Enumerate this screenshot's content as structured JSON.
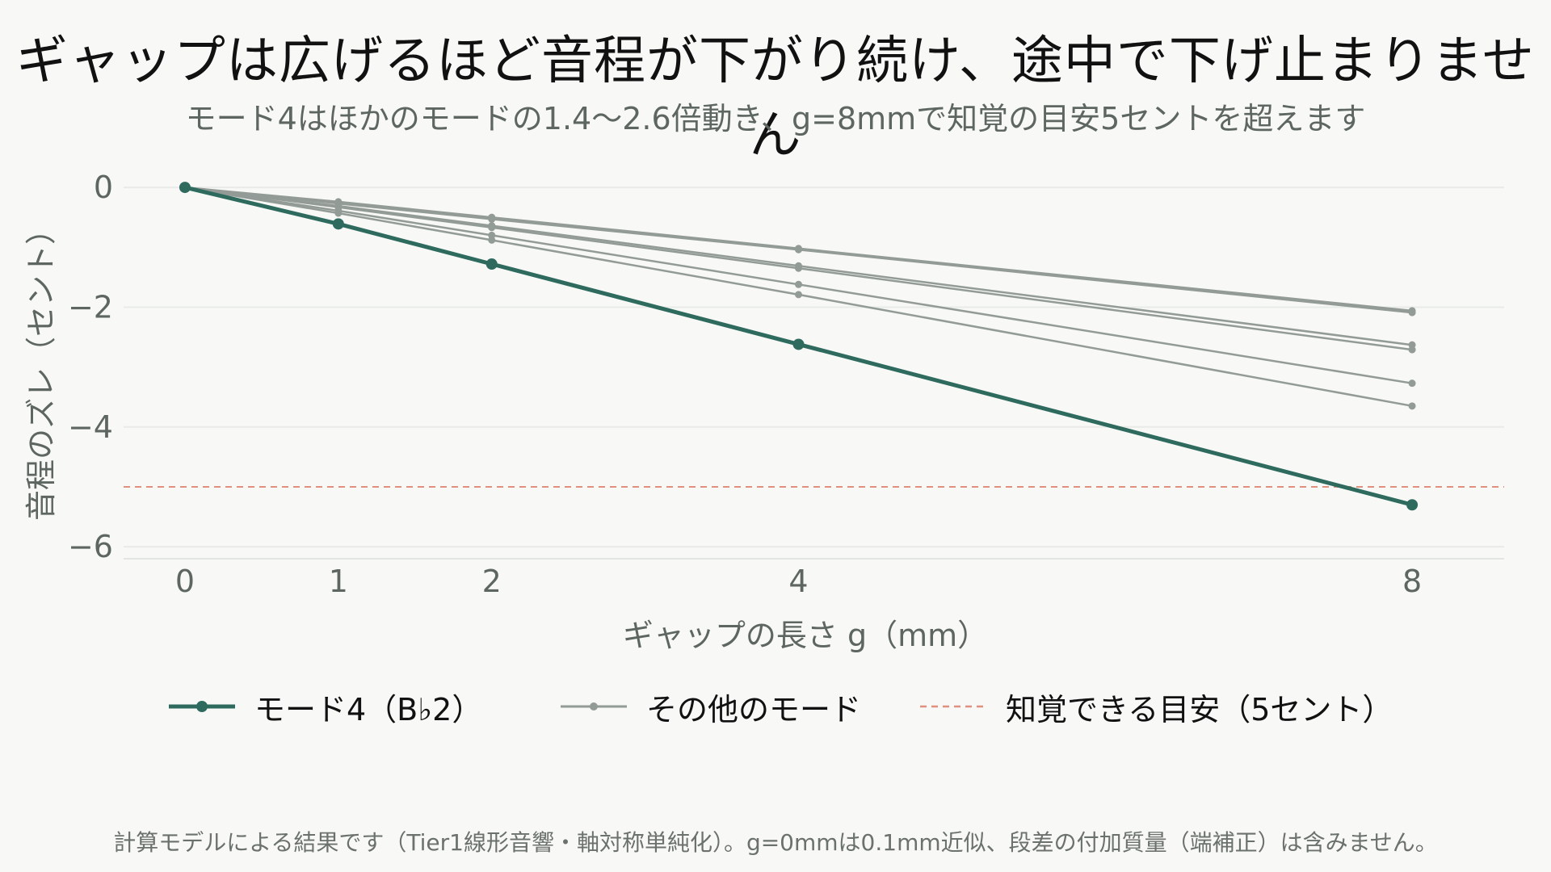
{
  "chart_data": {
    "type": "line",
    "title": "ギャップは広げるほど音程が下がり続け、途中で下げ止まりません",
    "subtitle": "モード4はほかのモードの1.4〜2.6倍動き、g=8mmで知覚の目安5セントを超えます",
    "xlabel": "ギャップの長さ g（mm）",
    "ylabel": "音程のズレ（セント）",
    "x": [
      0,
      1,
      2,
      4,
      8
    ],
    "x_ticks": [
      0,
      1,
      2,
      4,
      8
    ],
    "y_ticks": [
      0,
      -2,
      -4,
      -6
    ],
    "xlim": [
      -0.4,
      8.6
    ],
    "ylim": [
      -6.2,
      0.5
    ],
    "grid": true,
    "legend_position": "bottom",
    "series": [
      {
        "name": "モード4（B♭2）",
        "role": "highlight",
        "color": "#2e6b5e",
        "values": [
          0,
          -0.61,
          -1.28,
          -2.62,
          -5.3
        ]
      },
      {
        "name": "その他のモード",
        "role": "other",
        "color": "#939b97",
        "values": [
          0,
          -0.24,
          -0.5,
          -1.02,
          -2.06
        ]
      },
      {
        "name": "その他のモード",
        "role": "other",
        "color": "#939b97",
        "values": [
          0,
          -0.27,
          -0.53,
          -1.04,
          -2.09
        ]
      },
      {
        "name": "その他のモード",
        "role": "other",
        "color": "#939b97",
        "values": [
          0,
          -0.31,
          -0.64,
          -1.31,
          -2.63
        ]
      },
      {
        "name": "その他のモード",
        "role": "other",
        "color": "#939b97",
        "values": [
          0,
          -0.33,
          -0.67,
          -1.35,
          -2.71
        ]
      },
      {
        "name": "その他のモード",
        "role": "other",
        "color": "#939b97",
        "values": [
          0,
          -0.39,
          -0.8,
          -1.62,
          -3.27
        ]
      },
      {
        "name": "その他のモード",
        "role": "other",
        "color": "#939b97",
        "values": [
          0,
          -0.43,
          -0.88,
          -1.79,
          -3.65
        ]
      }
    ],
    "threshold": {
      "name": "知覚できる目安（5セント）",
      "value": -5,
      "color": "#e0907c"
    }
  },
  "legend": {
    "highlight_label": "モード4（B♭2）",
    "others_label": "その他のモード",
    "threshold_label": "知覚できる目安（5セント）"
  },
  "caption": "計算モデルによる結果です（Tier1線形音響・軸対称単純化）。g=0mmは0.1mm近似、段差の付加質量（端補正）は含みません。"
}
